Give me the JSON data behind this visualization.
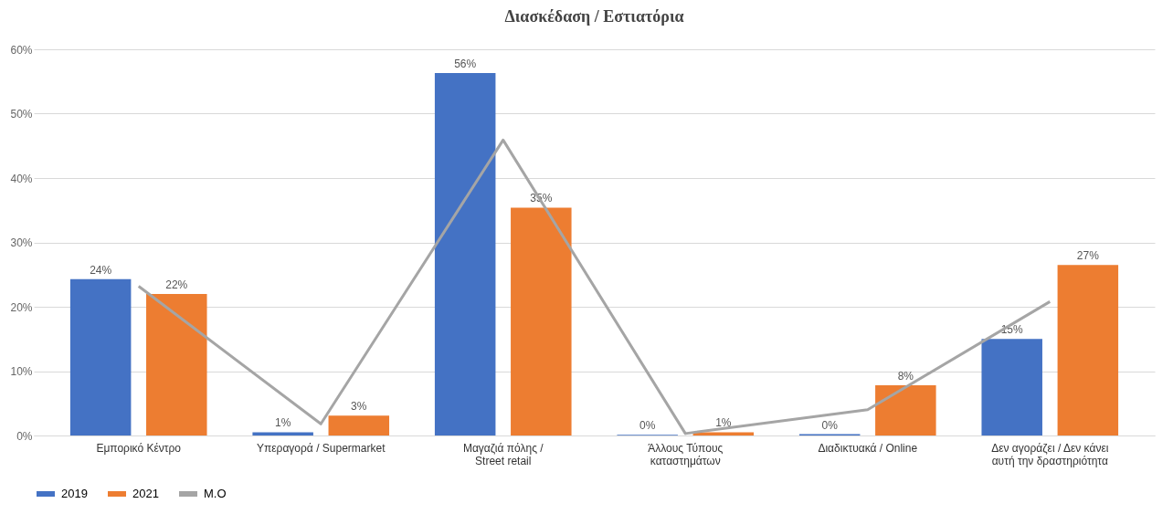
{
  "chart_data": {
    "type": "bar",
    "title": "Διασκέδαση / Εστιατόρια",
    "categories": [
      "Εμπορικό Κέντρο",
      "Υπεραγορά / Supermarket",
      "Μαγαζιά πόλης / Street retail",
      "Άλλους Τύπους καταστημάτων",
      "Διαδικτυακά / Online",
      "Δεν αγοράζει / Δεν κάνει αυτή την δραστηριότητα"
    ],
    "series": [
      {
        "name": "2019",
        "color": "#4472c4",
        "values": [
          24.3,
          0.5,
          56.3,
          0.1,
          0.2,
          15
        ],
        "value_labels": [
          "24%",
          "1%",
          "56%",
          "0%",
          "0%",
          "15%"
        ]
      },
      {
        "name": "2021",
        "color": "#ed7d31",
        "values": [
          22,
          3.1,
          35.4,
          0.5,
          7.8,
          26.5
        ],
        "value_labels": [
          "22%",
          "3%",
          "35%",
          "1%",
          "8%",
          "27%"
        ]
      },
      {
        "name": "M.O",
        "type": "line",
        "color": "#a5a5a5",
        "values": [
          23.2,
          1.8,
          45.9,
          0.3,
          4,
          20.8
        ]
      }
    ],
    "ylim": [
      0,
      60
    ],
    "yticks": [
      {
        "value": 0,
        "label": "0%"
      },
      {
        "value": 10,
        "label": "10%"
      },
      {
        "value": 20,
        "label": "20%"
      },
      {
        "value": 30,
        "label": "30%"
      },
      {
        "value": 40,
        "label": "40%"
      },
      {
        "value": 50,
        "label": "50%"
      },
      {
        "value": 60,
        "label": "60%"
      }
    ],
    "grid": "y",
    "legend": "bottom",
    "line_style": "solid",
    "marker": "none"
  }
}
